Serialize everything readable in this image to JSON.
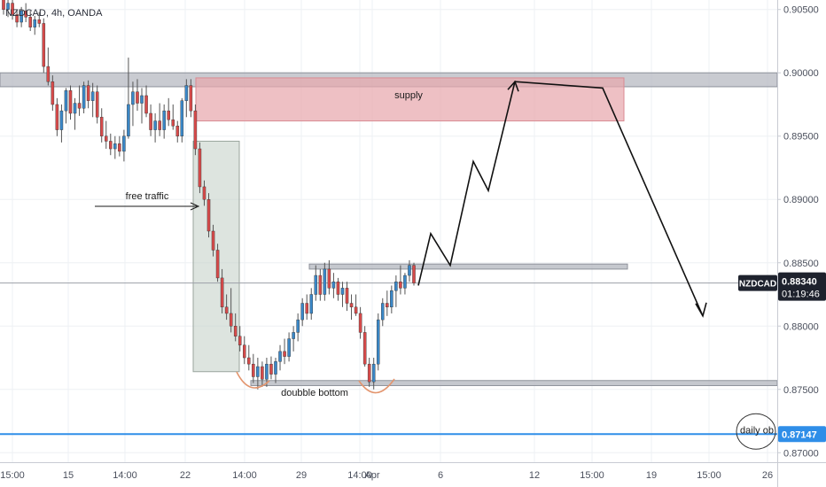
{
  "chart_data": {
    "type": "candlestick",
    "symbol_title": "NZDCAD, 4h, OANDA",
    "ylim": [
      0.86925,
      0.90575
    ],
    "y_ticks": [
      "0.90500",
      "0.90000",
      "0.89500",
      "0.89000",
      "0.88500",
      "0.88000",
      "0.87500",
      "0.87000"
    ],
    "x_ticks": [
      "15:00",
      "15",
      "14:00",
      "22",
      "14:00",
      "29",
      "14:00",
      "Apr",
      "6",
      "12",
      "15:00",
      "19",
      "15:00",
      "26"
    ],
    "current_price": {
      "symbol": "NZDCAD",
      "value": "0.88340",
      "countdown": "01:19:46",
      "value_num": 0.8834
    },
    "daily_ob": {
      "value": "0.87147",
      "value_num": 0.87147,
      "label": "daily ob"
    },
    "zones": [
      {
        "name": "supply",
        "label": "supply",
        "y_top": 0.8996,
        "y_bottom": 0.8962,
        "color": "#e8a7ad"
      },
      {
        "name": "free-traffic",
        "label": "free traffic",
        "y_top": 0.8946,
        "y_bottom": 0.8764,
        "color": "#c6d2c9"
      }
    ],
    "levels": [
      {
        "name": "resistance-band",
        "y_top": 0.9,
        "y_bottom": 0.8989
      },
      {
        "name": "neckline",
        "y_top": 0.8849,
        "y_bottom": 0.8845
      },
      {
        "name": "support",
        "y_top": 0.8757,
        "y_bottom": 0.8753
      }
    ],
    "annotations": {
      "free_traffic": "free traffic",
      "supply": "supply",
      "double_bottom": "doubble bottom"
    },
    "projection": [
      [
        0.8832
      ],
      [
        0.8873
      ],
      [
        0.8848
      ],
      [
        0.893
      ],
      [
        0.8907
      ],
      [
        0.8993
      ],
      [
        0.8988
      ],
      [
        0.8808
      ]
    ],
    "candles": [
      [
        0.9058,
        0.9063,
        0.9046,
        0.905
      ],
      [
        0.905,
        0.906,
        0.9044,
        0.9055
      ],
      [
        0.9055,
        0.9061,
        0.9042,
        0.9046
      ],
      [
        0.9046,
        0.905,
        0.9036,
        0.904
      ],
      [
        0.904,
        0.9052,
        0.9036,
        0.9049
      ],
      [
        0.9049,
        0.9055,
        0.904,
        0.9044
      ],
      [
        0.9044,
        0.9049,
        0.9033,
        0.9036
      ],
      [
        0.9036,
        0.9045,
        0.903,
        0.9042
      ],
      [
        0.9042,
        0.9048,
        0.9036,
        0.9039
      ],
      [
        0.9039,
        0.9043,
        0.9,
        0.9005
      ],
      [
        0.9005,
        0.902,
        0.899,
        0.8993
      ],
      [
        0.8993,
        0.8998,
        0.897,
        0.8975
      ],
      [
        0.8975,
        0.898,
        0.895,
        0.8955
      ],
      [
        0.8955,
        0.8975,
        0.8945,
        0.897
      ],
      [
        0.897,
        0.8988,
        0.896,
        0.8986
      ],
      [
        0.8986,
        0.899,
        0.8963,
        0.8968
      ],
      [
        0.8968,
        0.898,
        0.8955,
        0.8976
      ],
      [
        0.8976,
        0.899,
        0.8966,
        0.8972
      ],
      [
        0.8972,
        0.8993,
        0.8968,
        0.899
      ],
      [
        0.899,
        0.8994,
        0.8972,
        0.8978
      ],
      [
        0.8978,
        0.8992,
        0.8965,
        0.8985
      ],
      [
        0.8985,
        0.899,
        0.896,
        0.8965
      ],
      [
        0.8965,
        0.8972,
        0.8945,
        0.895
      ],
      [
        0.895,
        0.8962,
        0.894,
        0.8946
      ],
      [
        0.8946,
        0.8952,
        0.8935,
        0.894
      ],
      [
        0.894,
        0.895,
        0.8932,
        0.8944
      ],
      [
        0.8944,
        0.895,
        0.8934,
        0.8938
      ],
      [
        0.8938,
        0.8955,
        0.893,
        0.895
      ],
      [
        0.895,
        0.9012,
        0.8948,
        0.8975
      ],
      [
        0.8975,
        0.8993,
        0.8958,
        0.8985
      ],
      [
        0.8985,
        0.8995,
        0.897,
        0.8976
      ],
      [
        0.8976,
        0.8988,
        0.896,
        0.8982
      ],
      [
        0.8982,
        0.899,
        0.8965,
        0.8968
      ],
      [
        0.8968,
        0.8975,
        0.895,
        0.8955
      ],
      [
        0.8955,
        0.8968,
        0.8945,
        0.8962
      ],
      [
        0.8962,
        0.8976,
        0.895,
        0.8955
      ],
      [
        0.8955,
        0.8975,
        0.8948,
        0.897
      ],
      [
        0.897,
        0.898,
        0.8958,
        0.8963
      ],
      [
        0.8963,
        0.8975,
        0.8955,
        0.8958
      ],
      [
        0.8958,
        0.8962,
        0.8945,
        0.895
      ],
      [
        0.895,
        0.898,
        0.8945,
        0.8978
      ],
      [
        0.8978,
        0.8995,
        0.8965,
        0.899
      ],
      [
        0.899,
        0.8995,
        0.8965,
        0.897
      ],
      [
        0.897,
        0.8975,
        0.8935,
        0.894
      ],
      [
        0.894,
        0.8945,
        0.8905,
        0.891
      ],
      [
        0.891,
        0.8915,
        0.8895,
        0.89
      ],
      [
        0.89,
        0.8905,
        0.887,
        0.8875
      ],
      [
        0.8875,
        0.888,
        0.8855,
        0.886
      ],
      [
        0.886,
        0.8865,
        0.8835,
        0.8838
      ],
      [
        0.8838,
        0.8845,
        0.881,
        0.8815
      ],
      [
        0.8815,
        0.8825,
        0.8805,
        0.881
      ],
      [
        0.881,
        0.883,
        0.8795,
        0.88
      ],
      [
        0.88,
        0.881,
        0.8788,
        0.8792
      ],
      [
        0.8792,
        0.88,
        0.878,
        0.8785
      ],
      [
        0.8785,
        0.8792,
        0.877,
        0.8775
      ],
      [
        0.8775,
        0.8785,
        0.8765,
        0.877
      ],
      [
        0.877,
        0.8778,
        0.8755,
        0.876
      ],
      [
        0.876,
        0.8775,
        0.875,
        0.8768
      ],
      [
        0.8768,
        0.8772,
        0.8752,
        0.8758
      ],
      [
        0.8758,
        0.8775,
        0.8752,
        0.877
      ],
      [
        0.877,
        0.8776,
        0.8758,
        0.8762
      ],
      [
        0.8762,
        0.8775,
        0.8755,
        0.8772
      ],
      [
        0.8772,
        0.8785,
        0.8765,
        0.878
      ],
      [
        0.878,
        0.879,
        0.877,
        0.8776
      ],
      [
        0.8776,
        0.8795,
        0.8772,
        0.879
      ],
      [
        0.879,
        0.88,
        0.878,
        0.8795
      ],
      [
        0.8795,
        0.881,
        0.8788,
        0.8805
      ],
      [
        0.8805,
        0.8822,
        0.88,
        0.8818
      ],
      [
        0.8818,
        0.8825,
        0.8805,
        0.881
      ],
      [
        0.881,
        0.883,
        0.8805,
        0.8825
      ],
      [
        0.8825,
        0.8848,
        0.882,
        0.884
      ],
      [
        0.884,
        0.8845,
        0.882,
        0.8825
      ],
      [
        0.8825,
        0.885,
        0.882,
        0.8845
      ],
      [
        0.8845,
        0.8852,
        0.8825,
        0.883
      ],
      [
        0.883,
        0.8842,
        0.8822,
        0.8835
      ],
      [
        0.8835,
        0.8838,
        0.882,
        0.8825
      ],
      [
        0.8825,
        0.8835,
        0.8815,
        0.883
      ],
      [
        0.883,
        0.8835,
        0.8812,
        0.8818
      ],
      [
        0.8818,
        0.8825,
        0.8805,
        0.8815
      ],
      [
        0.8815,
        0.8825,
        0.8808,
        0.881
      ],
      [
        0.881,
        0.8815,
        0.879,
        0.8795
      ],
      [
        0.8795,
        0.88,
        0.8768,
        0.877
      ],
      [
        0.877,
        0.8775,
        0.8752,
        0.8756
      ],
      [
        0.8756,
        0.8775,
        0.875,
        0.877
      ],
      [
        0.877,
        0.881,
        0.8765,
        0.8805
      ],
      [
        0.8805,
        0.8822,
        0.88,
        0.8818
      ],
      [
        0.8818,
        0.8828,
        0.8808,
        0.8815
      ],
      [
        0.8815,
        0.8832,
        0.881,
        0.8828
      ],
      [
        0.8828,
        0.884,
        0.8815,
        0.8835
      ],
      [
        0.8835,
        0.8848,
        0.8825,
        0.883
      ],
      [
        0.883,
        0.8842,
        0.8825,
        0.884
      ],
      [
        0.884,
        0.8852,
        0.8835,
        0.8848
      ],
      [
        0.8848,
        0.885,
        0.8832,
        0.8834
      ]
    ]
  },
  "colors": {
    "up": "#3a87c7",
    "down": "#d64a4a",
    "wick": "#555555",
    "grid": "#eef0f4",
    "axis_bg": "#ffffff",
    "blue_line": "#2f8ee8",
    "price_label_bg": "#1e222d",
    "ob_label_bg": "#2f8ee8",
    "supply_fill": "#e8a7ad",
    "supply_stroke": "#d98a92",
    "traffic_fill": "#c6d2c9",
    "level_fill": "#b7bac2",
    "bottom_arc": "#e3956e"
  }
}
